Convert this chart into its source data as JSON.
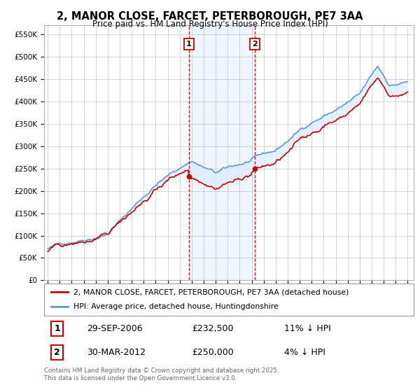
{
  "title": "2, MANOR CLOSE, FARCET, PETERBOROUGH, PE7 3AA",
  "subtitle": "Price paid vs. HM Land Registry's House Price Index (HPI)",
  "ylim": [
    0,
    570000
  ],
  "ytick_vals": [
    0,
    50000,
    100000,
    150000,
    200000,
    250000,
    300000,
    350000,
    400000,
    450000,
    500000,
    550000
  ],
  "hpi_color": "#5b9bd5",
  "price_color": "#cc0000",
  "shade_color": "#ddeeff",
  "vline_color": "#cc0000",
  "legend_property": "2, MANOR CLOSE, FARCET, PETERBOROUGH, PE7 3AA (detached house)",
  "legend_hpi": "HPI: Average price, detached house, Huntingdonshire",
  "footer": "Contains HM Land Registry data © Crown copyright and database right 2025.\nThis data is licensed under the Open Government Licence v3.0.",
  "background_color": "#ffffff",
  "grid_color": "#cccccc",
  "purchase_points": [
    {
      "year": 2006.75,
      "price": 232500,
      "label": "1"
    },
    {
      "year": 2012.25,
      "price": 250000,
      "label": "2"
    }
  ],
  "purchases_info": [
    {
      "label": "1",
      "date": "29-SEP-2006",
      "price": "£232,500",
      "hpi": "11% ↓ HPI"
    },
    {
      "label": "2",
      "date": "30-MAR-2012",
      "price": "£250,000",
      "hpi": "4% ↓ HPI"
    }
  ]
}
